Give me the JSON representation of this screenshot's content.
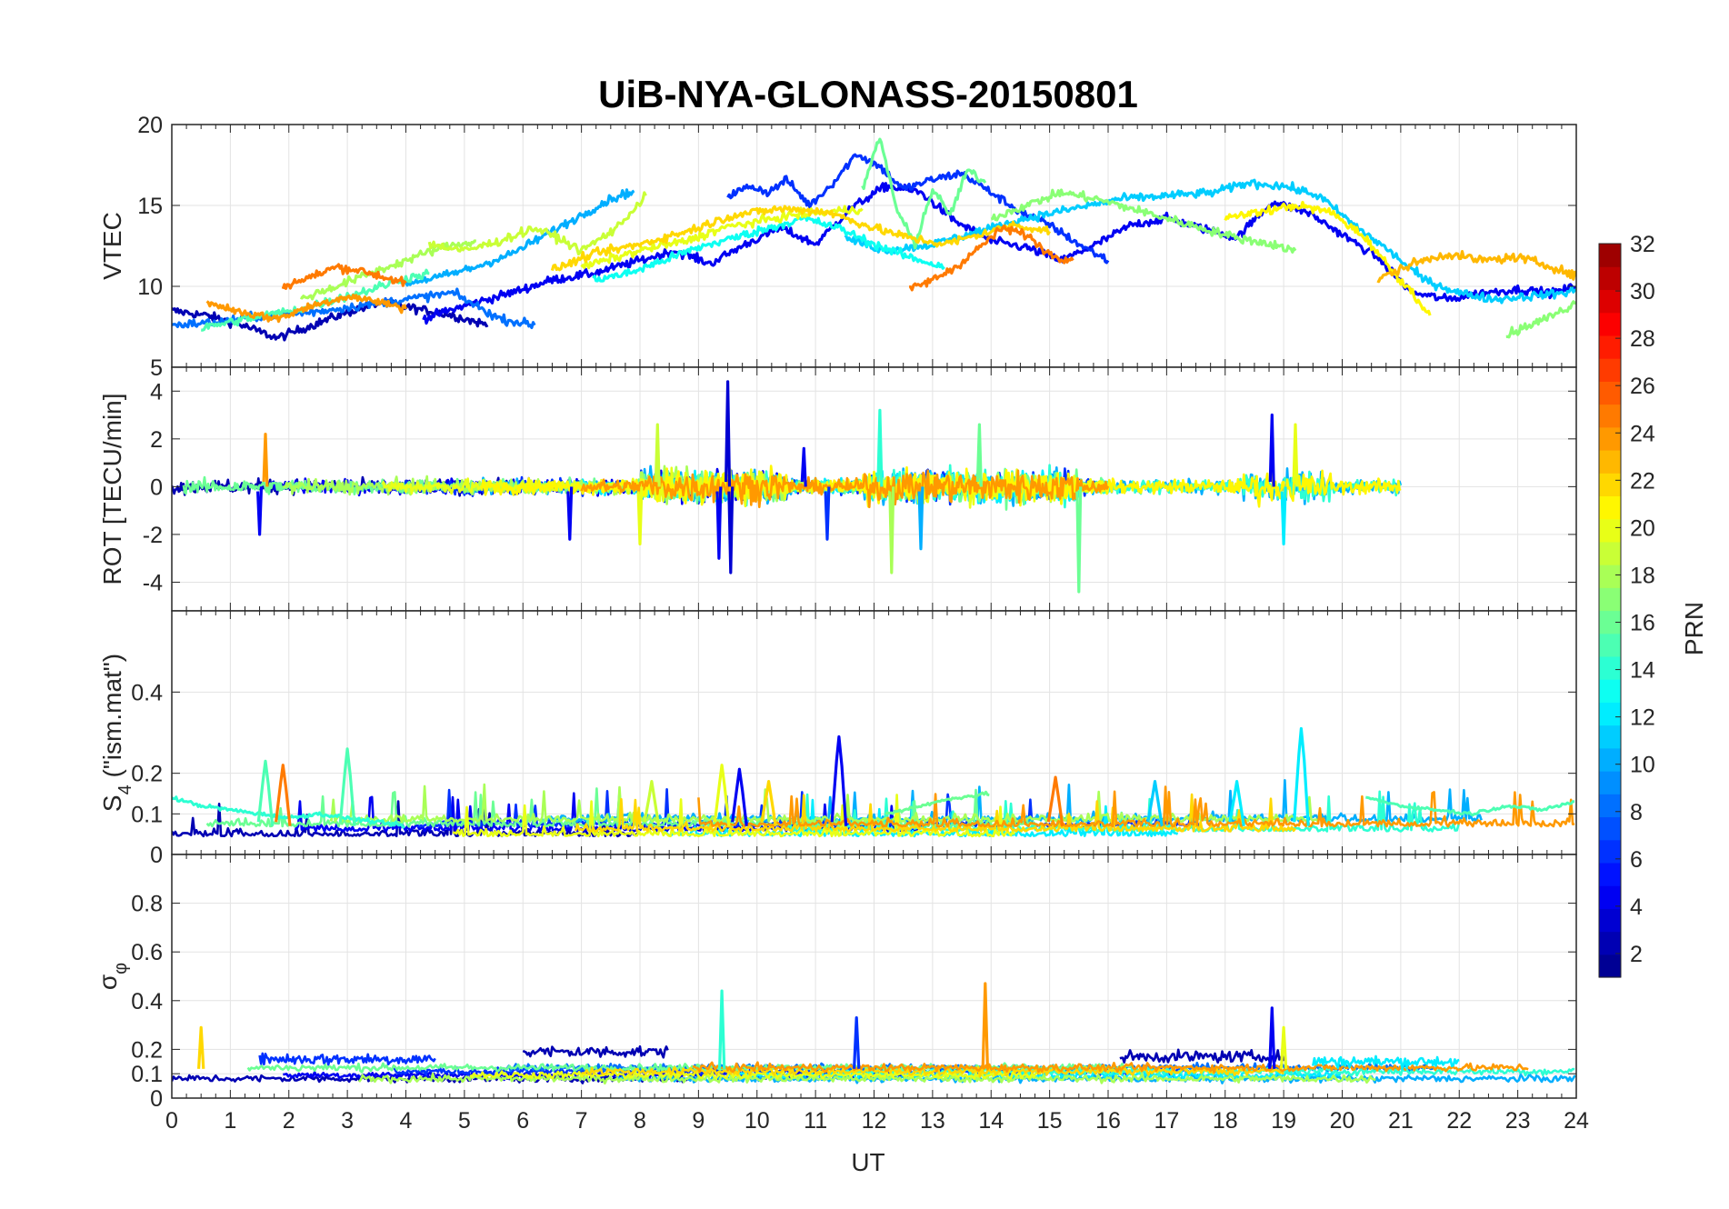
{
  "figure": {
    "title": "UiB-NYA-GLONASS-20150801",
    "xlabel": "UT"
  },
  "chart_data": [
    {
      "type": "line",
      "panel": "vtec",
      "ylabel": "VTEC",
      "xlim": [
        0,
        24
      ],
      "ylim": [
        5,
        20
      ],
      "yticks": [
        5,
        10,
        15,
        20
      ],
      "xticks": [
        0,
        1,
        2,
        3,
        4,
        5,
        6,
        7,
        8,
        9,
        10,
        11,
        12,
        13,
        14,
        15,
        16,
        17,
        18,
        19,
        20,
        21,
        22,
        23,
        24
      ],
      "show_xticklabels": false,
      "grid": true,
      "series": [
        {
          "color_prn": 2,
          "x": [
            0.0,
            0.6,
            1.2,
            1.8,
            2.4,
            3.0,
            3.6,
            4.2,
            4.8,
            5.4
          ],
          "values": [
            8.5,
            8.2,
            7.6,
            6.8,
            7.6,
            8.4,
            9.0,
            8.6,
            8.2,
            7.6
          ]
        },
        {
          "color_prn": 4,
          "x": [
            4.3,
            5.0,
            5.8,
            6.5,
            7.2,
            8.0,
            8.6,
            9.2,
            9.8,
            10.4,
            11.0,
            11.6,
            12.2,
            12.8,
            13.4,
            14.0,
            14.6,
            15.2,
            15.8,
            16.4,
            17.0,
            17.6,
            18.2,
            18.8,
            19.4,
            20.0,
            20.6,
            21.2,
            21.8,
            22.4,
            23.0,
            23.6,
            24.0
          ],
          "values": [
            8.0,
            8.8,
            9.6,
            10.4,
            10.8,
            11.6,
            12.2,
            11.4,
            12.6,
            13.6,
            12.6,
            14.8,
            16.2,
            15.8,
            14.0,
            12.8,
            12.4,
            11.6,
            12.6,
            13.8,
            14.2,
            13.6,
            13.0,
            15.2,
            14.6,
            13.2,
            11.8,
            9.6,
            9.2,
            9.6,
            9.8,
            9.6,
            10.0
          ]
        },
        {
          "color_prn": 6,
          "x": [
            9.5,
            9.9,
            10.2,
            10.5,
            10.9,
            11.3,
            11.7,
            12.1,
            12.5,
            13.0,
            13.5,
            14.0,
            14.5,
            15.0,
            15.5,
            16.0
          ],
          "values": [
            15.6,
            16.2,
            15.8,
            16.6,
            15.0,
            16.4,
            18.2,
            17.4,
            16.0,
            16.6,
            17.0,
            15.8,
            14.6,
            13.8,
            12.6,
            11.6
          ]
        },
        {
          "color_prn": 8,
          "x": [
            0.0,
            0.8,
            1.6,
            2.4,
            3.2,
            4.0,
            4.8,
            5.6,
            6.2
          ],
          "values": [
            7.6,
            7.8,
            8.2,
            8.4,
            8.8,
            9.2,
            9.6,
            8.0,
            7.6
          ]
        },
        {
          "color_prn": 10,
          "x": [
            4.0,
            4.6,
            5.2,
            5.8,
            6.4,
            7.0,
            7.5,
            7.9
          ],
          "values": [
            10.2,
            10.6,
            11.2,
            12.0,
            13.2,
            14.4,
            15.4,
            15.9
          ]
        },
        {
          "color_prn": 11,
          "x": [
            11.5,
            12.2,
            13.0,
            13.8,
            14.6,
            15.4,
            16.2,
            17.0,
            17.8,
            18.4,
            19.0,
            19.6,
            20.2,
            20.8,
            21.4,
            22.0,
            22.6,
            23.2,
            23.8,
            24.0
          ],
          "values": [
            13.0,
            12.2,
            12.6,
            13.4,
            14.2,
            14.8,
            15.4,
            15.6,
            15.8,
            16.4,
            16.2,
            15.6,
            13.8,
            12.2,
            10.4,
            9.6,
            9.2,
            9.4,
            9.6,
            9.8
          ]
        },
        {
          "color_prn": 13,
          "x": [
            7.2,
            7.8,
            8.4,
            9.0,
            9.6,
            10.2,
            10.8,
            11.4,
            12.0,
            12.6,
            13.2
          ],
          "values": [
            10.4,
            10.8,
            11.6,
            12.4,
            13.0,
            13.6,
            14.2,
            13.6,
            12.6,
            11.8,
            11.2
          ]
        },
        {
          "color_prn": 15,
          "x": [
            0.5,
            1.0,
            1.6,
            2.2,
            2.8,
            3.4,
            3.9,
            4.4
          ],
          "values": [
            7.4,
            7.8,
            8.2,
            8.6,
            9.2,
            9.8,
            10.4,
            10.8
          ]
        },
        {
          "color_prn": 16,
          "x": [
            11.8,
            12.1,
            12.4,
            12.7,
            13.0,
            13.3,
            13.6,
            13.9
          ],
          "values": [
            16.0,
            19.2,
            14.6,
            12.6,
            16.0,
            14.4,
            17.2,
            16.4
          ]
        },
        {
          "color_prn": 17,
          "x": [
            14.0,
            14.6,
            15.2,
            15.8,
            16.4,
            17.0,
            17.6,
            18.2,
            18.8,
            19.2
          ],
          "values": [
            14.2,
            15.0,
            15.8,
            15.4,
            14.8,
            14.2,
            13.6,
            13.0,
            12.6,
            12.2
          ]
        },
        {
          "color_prn": 18,
          "x": [
            2.2,
            2.8,
            3.4,
            4.0,
            4.6,
            5.2
          ],
          "values": [
            9.2,
            10.0,
            10.8,
            11.6,
            12.4,
            12.8
          ]
        },
        {
          "color_prn": 19,
          "x": [
            4.4,
            5.0,
            5.6,
            6.2,
            6.6,
            7.0,
            7.6,
            8.1
          ],
          "values": [
            12.6,
            12.2,
            12.8,
            13.6,
            13.0,
            12.2,
            13.6,
            15.6
          ]
        },
        {
          "color_prn": 20,
          "x": [
            7.0,
            7.6,
            8.2,
            8.8,
            9.4,
            10.0,
            10.6,
            11.2,
            11.8
          ],
          "values": [
            11.2,
            11.8,
            12.4,
            12.8,
            13.6,
            14.0,
            14.4,
            14.6,
            14.8
          ]
        },
        {
          "color_prn": 21,
          "x": [
            18.0,
            18.6,
            19.2,
            19.8,
            20.4,
            20.8,
            21.2,
            21.5
          ],
          "values": [
            14.2,
            14.6,
            15.0,
            14.6,
            13.0,
            11.2,
            9.6,
            8.2
          ]
        },
        {
          "color_prn": 22,
          "x": [
            6.5,
            7.2,
            8.0,
            8.8,
            9.6,
            10.4,
            11.2,
            12.0,
            12.6,
            13.2,
            13.8,
            14.4,
            15.0
          ],
          "values": [
            11.0,
            12.0,
            12.6,
            13.4,
            14.4,
            14.8,
            14.6,
            13.6,
            13.0,
            12.6,
            13.2,
            13.8,
            13.4
          ]
        },
        {
          "color_prn": 23,
          "x": [
            20.6,
            21.2,
            21.8,
            22.4,
            23.0,
            23.6,
            24.0
          ],
          "values": [
            10.4,
            11.4,
            12.0,
            11.6,
            11.8,
            11.2,
            10.6
          ]
        },
        {
          "color_prn": 24,
          "x": [
            0.6,
            1.2,
            1.8,
            2.4,
            3.0,
            3.6,
            4.0
          ],
          "values": [
            9.0,
            8.4,
            8.0,
            8.8,
            9.4,
            9.0,
            8.6
          ]
        },
        {
          "color_prn": 25,
          "x": [
            1.9,
            2.4,
            2.8,
            3.2,
            3.6,
            4.0
          ],
          "values": [
            10.0,
            10.6,
            11.2,
            11.0,
            10.6,
            10.2
          ]
        },
        {
          "color_prn": 25,
          "x": [
            12.6,
            13.0,
            13.4,
            13.8,
            14.2,
            14.6,
            15.0,
            15.4
          ],
          "values": [
            9.8,
            10.4,
            11.2,
            12.4,
            13.6,
            13.2,
            12.0,
            11.6
          ]
        },
        {
          "color_prn": 17,
          "x": [
            22.8,
            23.2,
            23.6,
            24.0
          ],
          "values": [
            7.0,
            7.6,
            8.2,
            9.0
          ]
        }
      ]
    },
    {
      "type": "line",
      "panel": "rot",
      "ylabel": "ROT [TECU/min]",
      "xlim": [
        0,
        24
      ],
      "ylim": [
        -5.2,
        5
      ],
      "yticks": [
        -4,
        -2,
        0,
        2,
        4
      ],
      "show_xticklabels": false,
      "grid": true,
      "noise_series_prns": [
        2,
        4,
        6,
        10,
        12,
        14,
        16,
        18,
        20,
        21,
        24
      ],
      "spikes": [
        {
          "x": 9.5,
          "value": 4.4,
          "color_prn": 3
        },
        {
          "x": 9.55,
          "value": -3.6,
          "color_prn": 3
        },
        {
          "x": 9.35,
          "value": -3.0,
          "color_prn": 4
        },
        {
          "x": 15.5,
          "value": -4.4,
          "color_prn": 16
        },
        {
          "x": 12.1,
          "value": 3.2,
          "color_prn": 14
        },
        {
          "x": 13.8,
          "value": 2.6,
          "color_prn": 16
        },
        {
          "x": 18.8,
          "value": 3.0,
          "color_prn": 4
        },
        {
          "x": 12.3,
          "value": -3.6,
          "color_prn": 18
        },
        {
          "x": 12.8,
          "value": -2.6,
          "color_prn": 10
        },
        {
          "x": 8.0,
          "value": -2.4,
          "color_prn": 20
        },
        {
          "x": 1.6,
          "value": 2.2,
          "color_prn": 24
        },
        {
          "x": 1.5,
          "value": -2.0,
          "color_prn": 4
        },
        {
          "x": 6.8,
          "value": -2.2,
          "color_prn": 4
        },
        {
          "x": 8.3,
          "value": 2.6,
          "color_prn": 19
        },
        {
          "x": 19.0,
          "value": -2.4,
          "color_prn": 12
        },
        {
          "x": 19.2,
          "value": 2.6,
          "color_prn": 20
        },
        {
          "x": 10.8,
          "value": 1.6,
          "color_prn": 4
        },
        {
          "x": 11.2,
          "value": -2.2,
          "color_prn": 6
        }
      ]
    },
    {
      "type": "line",
      "panel": "s4",
      "ylabel": "S",
      "ylabel_subscript": "4",
      "ylabel_suffix": " (\"ism.mat\")",
      "xlim": [
        0,
        24
      ],
      "ylim": [
        0,
        0.6
      ],
      "yticks": [
        0,
        0.1,
        0.2,
        0.4
      ],
      "show_xticklabels": false,
      "grid": true,
      "series_base": [
        {
          "color_prn": 14,
          "x": [
            0,
            0.5,
            1.0,
            1.5,
            2.0,
            2.5,
            3.0,
            3.5,
            4.0
          ],
          "values": [
            0.14,
            0.12,
            0.11,
            0.1,
            0.09,
            0.1,
            0.09,
            0.08,
            0.07
          ]
        },
        {
          "color_prn": 15,
          "x": [
            20.4,
            21.0,
            21.6,
            22.2,
            22.8,
            23.4,
            24.0
          ],
          "values": [
            0.14,
            0.12,
            0.11,
            0.1,
            0.12,
            0.11,
            0.13
          ]
        },
        {
          "color_prn": 16,
          "x": [
            12.2,
            12.8,
            13.4,
            14.0
          ],
          "values": [
            0.1,
            0.12,
            0.14,
            0.15
          ]
        }
      ],
      "peaks": [
        {
          "x": 11.4,
          "value": 0.29,
          "color_prn": 4
        },
        {
          "x": 19.3,
          "value": 0.31,
          "color_prn": 12
        },
        {
          "x": 3.0,
          "value": 0.26,
          "color_prn": 15
        },
        {
          "x": 1.6,
          "value": 0.23,
          "color_prn": 15
        },
        {
          "x": 1.9,
          "value": 0.22,
          "color_prn": 25
        },
        {
          "x": 9.4,
          "value": 0.22,
          "color_prn": 20
        },
        {
          "x": 9.7,
          "value": 0.21,
          "color_prn": 4
        },
        {
          "x": 15.1,
          "value": 0.19,
          "color_prn": 25
        },
        {
          "x": 18.2,
          "value": 0.18,
          "color_prn": 12
        },
        {
          "x": 16.8,
          "value": 0.18,
          "color_prn": 11
        },
        {
          "x": 8.2,
          "value": 0.18,
          "color_prn": 19
        },
        {
          "x": 10.2,
          "value": 0.18,
          "color_prn": 22
        }
      ]
    },
    {
      "type": "line",
      "panel": "sigma",
      "ylabel": "σ",
      "ylabel_subscript": "φ",
      "xlim": [
        0,
        24
      ],
      "ylim": [
        0,
        1
      ],
      "yticks": [
        0,
        0.1,
        0.2,
        0.4,
        0.6,
        0.8
      ],
      "xticks": [
        0,
        1,
        2,
        3,
        4,
        5,
        6,
        7,
        8,
        9,
        10,
        11,
        12,
        13,
        14,
        15,
        16,
        17,
        18,
        19,
        20,
        21,
        22,
        23,
        24
      ],
      "show_xticklabels": true,
      "grid": true,
      "peaks": [
        {
          "x": 13.9,
          "value": 0.47,
          "color_prn": 24
        },
        {
          "x": 9.4,
          "value": 0.44,
          "color_prn": 14
        },
        {
          "x": 18.8,
          "value": 0.37,
          "color_prn": 4
        },
        {
          "x": 11.7,
          "value": 0.33,
          "color_prn": 6
        },
        {
          "x": 0.5,
          "value": 0.29,
          "color_prn": 22
        },
        {
          "x": 19.0,
          "value": 0.29,
          "color_prn": 20
        }
      ],
      "band_segments": [
        {
          "color_prn": 2,
          "x": [
            6.0,
            8.5
          ],
          "base": 0.19
        },
        {
          "color_prn": 2,
          "x": [
            16.2,
            19.0
          ],
          "base": 0.17
        },
        {
          "color_prn": 6,
          "x": [
            1.5,
            4.5
          ],
          "base": 0.16
        },
        {
          "color_prn": 12,
          "x": [
            19.5,
            22.0
          ],
          "base": 0.15
        }
      ]
    }
  ],
  "colorbar": {
    "label": "PRN",
    "range": [
      1,
      32
    ],
    "ticks": [
      2,
      4,
      6,
      8,
      10,
      12,
      14,
      16,
      18,
      20,
      22,
      24,
      26,
      28,
      30,
      32
    ],
    "colormap": "jet"
  }
}
